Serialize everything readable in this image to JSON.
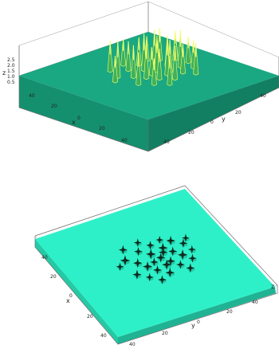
{
  "chart_data": [
    {
      "type": "surface",
      "view": "oblique",
      "xlabel": "x",
      "ylabel": "y",
      "zlabel": "z",
      "x_ticks": [
        "40",
        "20",
        "0",
        "20",
        "40"
      ],
      "y_ticks": [
        "40",
        "20",
        "0",
        "20",
        "40"
      ],
      "z_ticks": [
        "2.5",
        "2.0",
        "1.5",
        "1.0",
        "0.5"
      ],
      "zlim": [
        0.5,
        2.5
      ],
      "grid": false,
      "colors": {
        "base": "#1aa882",
        "base_side": "#15906f",
        "peak_low": "#3fb15a",
        "peak_high": "#f2ff6a"
      },
      "peaks": [
        {
          "x": -10,
          "y": -14,
          "z": 2.5
        },
        {
          "x": -4,
          "y": -8,
          "z": 2.2
        },
        {
          "x": 2,
          "y": -4,
          "z": 2.4
        },
        {
          "x": 8,
          "y": 0,
          "z": 2.1
        },
        {
          "x": -14,
          "y": -2,
          "z": 2.0
        },
        {
          "x": -8,
          "y": 4,
          "z": 2.5
        },
        {
          "x": -2,
          "y": 8,
          "z": 2.3
        },
        {
          "x": 4,
          "y": 12,
          "z": 2.2
        },
        {
          "x": 10,
          "y": 16,
          "z": 2.0
        },
        {
          "x": -16,
          "y": 8,
          "z": 1.9
        },
        {
          "x": -10,
          "y": 14,
          "z": 2.4
        },
        {
          "x": -4,
          "y": 18,
          "z": 2.1
        },
        {
          "x": 2,
          "y": 22,
          "z": 2.5
        },
        {
          "x": 8,
          "y": 26,
          "z": 1.9
        },
        {
          "x": -14,
          "y": 22,
          "z": 2.2
        },
        {
          "x": -8,
          "y": 28,
          "z": 2.0
        },
        {
          "x": 14,
          "y": 6,
          "z": 2.3
        },
        {
          "x": 12,
          "y": -8,
          "z": 1.8
        },
        {
          "x": -20,
          "y": -10,
          "z": 2.1
        },
        {
          "x": -18,
          "y": 16,
          "z": 1.7
        },
        {
          "x": 6,
          "y": -14,
          "z": 2.2
        },
        {
          "x": 0,
          "y": 2,
          "z": 1.9
        },
        {
          "x": -6,
          "y": -20,
          "z": 1.8
        },
        {
          "x": 16,
          "y": 20,
          "z": 2.1
        },
        {
          "x": 0,
          "y": 30,
          "z": 1.8
        },
        {
          "x": -12,
          "y": 32,
          "z": 1.7
        },
        {
          "x": 18,
          "y": -2,
          "z": 2.0
        },
        {
          "x": -22,
          "y": 2,
          "z": 1.8
        },
        {
          "x": 6,
          "y": 8,
          "z": 2.4
        },
        {
          "x": -6,
          "y": 12,
          "z": 2.2
        }
      ]
    },
    {
      "type": "surface",
      "view": "top-down",
      "xlabel": "x",
      "ylabel": "y",
      "zlabel": "z",
      "x_ticks": [
        "40",
        "20",
        "0",
        "20",
        "40"
      ],
      "y_ticks": [
        "40",
        "20",
        "0",
        "20",
        "40"
      ],
      "grid": false,
      "colors": {
        "base": "#2ef0c8",
        "base_side": "#24c9a5",
        "peak": "#0e2a1e"
      }
    }
  ]
}
